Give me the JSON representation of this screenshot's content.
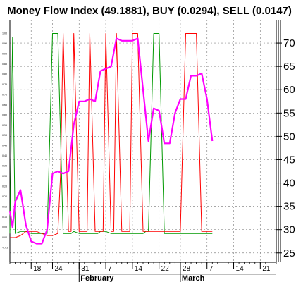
{
  "chart_data": {
    "type": "line",
    "title": "Money Flow Index (49.1881), BUY (0.0294), SELL (0.0147)",
    "left_axis": {
      "ylim": [
        0,
        1.05
      ],
      "ticks": [
        "1.00",
        "0.95",
        "0.90",
        "0.85",
        "0.80",
        "0.75",
        "0.70",
        "0.65",
        "0.60",
        "0.55",
        "0.50",
        "0.45",
        "0.40",
        "0.35",
        "0.30",
        "0.25",
        "0.20",
        "0.15",
        "0.10",
        "0.05",
        "0.00",
        "-0.05"
      ]
    },
    "right_axis": {
      "ylim": [
        23,
        75
      ],
      "ticks": [
        "70",
        "65",
        "60",
        "55",
        "50",
        "45",
        "40",
        "35",
        "30",
        "25"
      ]
    },
    "x_ticks": [
      {
        "label": "18",
        "x": 4
      },
      {
        "label": "24",
        "x": 8
      },
      {
        "label": "31",
        "x": 13
      },
      {
        "label": "7",
        "x": 18
      },
      {
        "label": "14",
        "x": 23
      },
      {
        "label": "22",
        "x": 28
      },
      {
        "label": "28",
        "x": 32
      },
      {
        "label": "7",
        "x": 37
      },
      {
        "label": "14",
        "x": 42
      },
      {
        "label": "21",
        "x": 47
      }
    ],
    "months": [
      {
        "label": "February",
        "x": 13
      },
      {
        "label": "March",
        "x": 32
      }
    ],
    "grid": true,
    "series": [
      {
        "axis": "right",
        "color": "#ff00ff",
        "x": [
          0,
          0.5,
          1,
          2,
          3,
          4,
          5,
          6,
          7,
          8,
          9,
          10,
          11,
          12,
          13,
          14,
          15,
          16,
          17,
          18,
          19,
          20,
          21,
          22,
          23,
          24,
          25,
          26,
          27,
          28,
          29,
          30,
          31,
          32,
          33,
          34,
          35,
          36,
          37,
          38
        ],
        "y": [
          34,
          30.5,
          36,
          38.5,
          31,
          27.5,
          27,
          27,
          30,
          42,
          42.5,
          42,
          42.5,
          52.5,
          57.5,
          57.5,
          58,
          57.5,
          64,
          64.5,
          65,
          71,
          70.5,
          70.5,
          70.5,
          71,
          60,
          49,
          56,
          55.5,
          48.5,
          48.5,
          55,
          58,
          58,
          63,
          63,
          63.5,
          58,
          49
        ]
      },
      {
        "axis": "left",
        "color": "#009900",
        "x": [
          0,
          0.5,
          1,
          2,
          2.5,
          3,
          4,
          5,
          6,
          7,
          7.5,
          8,
          8.5,
          9,
          10,
          11,
          11.5,
          12,
          13,
          14,
          15,
          16,
          16.5,
          17,
          17.5,
          18,
          19,
          20,
          20.5,
          21,
          22,
          23,
          24,
          25,
          25.5,
          26,
          26.5,
          27,
          27.5,
          28,
          29,
          30,
          31,
          32,
          33,
          34,
          35,
          36,
          37,
          38
        ],
        "y": [
          0.02,
          0.98,
          0.02,
          0.03,
          0.03,
          0.03,
          0.02,
          0.02,
          0.02,
          0.02,
          0.5,
          1.0,
          1.0,
          1.0,
          0.02,
          0.02,
          0.02,
          0.03,
          0.02,
          0.02,
          0.02,
          0.02,
          0.02,
          0.03,
          0.03,
          0.03,
          0.02,
          0.02,
          0.02,
          0.02,
          0.02,
          0.02,
          0.02,
          0.02,
          0.03,
          0.03,
          0.5,
          1.0,
          1.0,
          1.0,
          0.02,
          0.02,
          0.02,
          0.02,
          0.02,
          0.02,
          0.02,
          0.02,
          0.02,
          0.02
        ]
      },
      {
        "axis": "left",
        "color": "#ff0000",
        "x": [
          0,
          1,
          2,
          3,
          4,
          5,
          6,
          7,
          8,
          9,
          9.5,
          10,
          11,
          11.5,
          12,
          13,
          14,
          14.5,
          15,
          16,
          17,
          17.5,
          18,
          19,
          19.5,
          20,
          21,
          22,
          22.5,
          23,
          24,
          25,
          26,
          27,
          28,
          29,
          29.5,
          30,
          31,
          32,
          33,
          33.5,
          34,
          35,
          36,
          37,
          38
        ],
        "y": [
          0,
          0,
          0.01,
          0.03,
          0.03,
          0.03,
          0.02,
          0.01,
          0.01,
          0.02,
          0.3,
          1.0,
          0.03,
          0.03,
          1.0,
          0.03,
          0.03,
          0.03,
          1.0,
          0.03,
          0.03,
          0.03,
          1.0,
          0.03,
          0.03,
          1.0,
          0.03,
          0.03,
          0.03,
          1.0,
          1.0,
          0.03,
          0.03,
          0.03,
          0.03,
          0.03,
          0.03,
          0.03,
          0.03,
          0.03,
          1.0,
          1.0,
          1.0,
          1.0,
          0.03,
          0.03,
          0.03
        ]
      }
    ]
  }
}
